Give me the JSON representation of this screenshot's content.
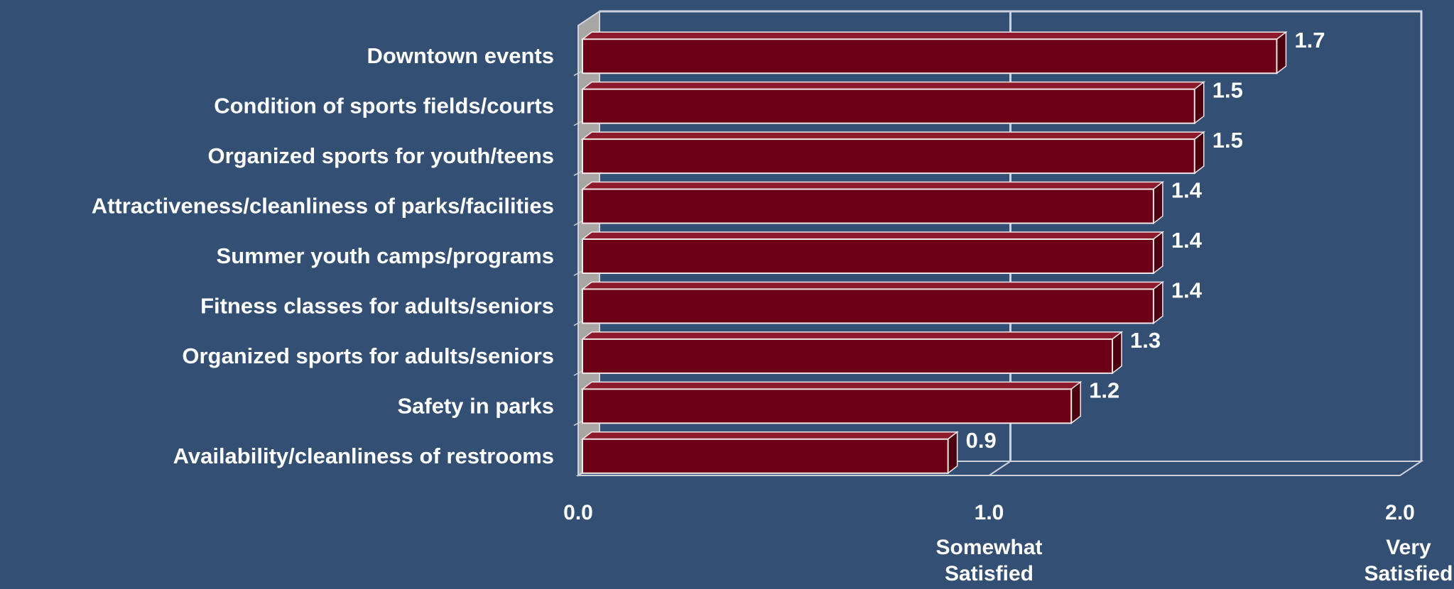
{
  "chart_data": {
    "type": "bar",
    "orientation": "horizontal",
    "title": "",
    "xlabel": "",
    "ylabel": "",
    "categories": [
      "Downtown events",
      "Condition of sports fields/courts",
      "Organized sports for youth/teens",
      "Attractiveness/cleanliness of parks/facilities",
      "Summer youth camps/programs",
      "Fitness classes for adults/seniors",
      "Organized sports for adults/seniors",
      "Safety in parks",
      "Availability/cleanliness of restrooms"
    ],
    "values": [
      1.7,
      1.5,
      1.5,
      1.4,
      1.4,
      1.4,
      1.3,
      1.2,
      0.9
    ],
    "data_labels": [
      "1.7",
      "1.5",
      "1.5",
      "1.4",
      "1.4",
      "1.4",
      "1.3",
      "1.2",
      "0.9"
    ],
    "xlim": [
      0,
      2
    ],
    "x_ticks": [
      {
        "value": 0,
        "label": "0.0",
        "sublabel": []
      },
      {
        "value": 1,
        "label": "1.0",
        "sublabel": [
          "Somewhat",
          "Satisfied"
        ]
      },
      {
        "value": 2,
        "label": "2.0",
        "sublabel": [
          "Very",
          "Satisfied"
        ]
      }
    ],
    "grid": true,
    "style_3d": true,
    "colors": {
      "background": "#344f74",
      "bar_front": "#6b0016",
      "bar_top": "#8c1a2c",
      "bar_side": "#4d0010",
      "bar_edge": "#f2e6e6",
      "frame": "#cdd3dc",
      "wall": "#a8a6a3",
      "text": "#ffffff"
    }
  }
}
